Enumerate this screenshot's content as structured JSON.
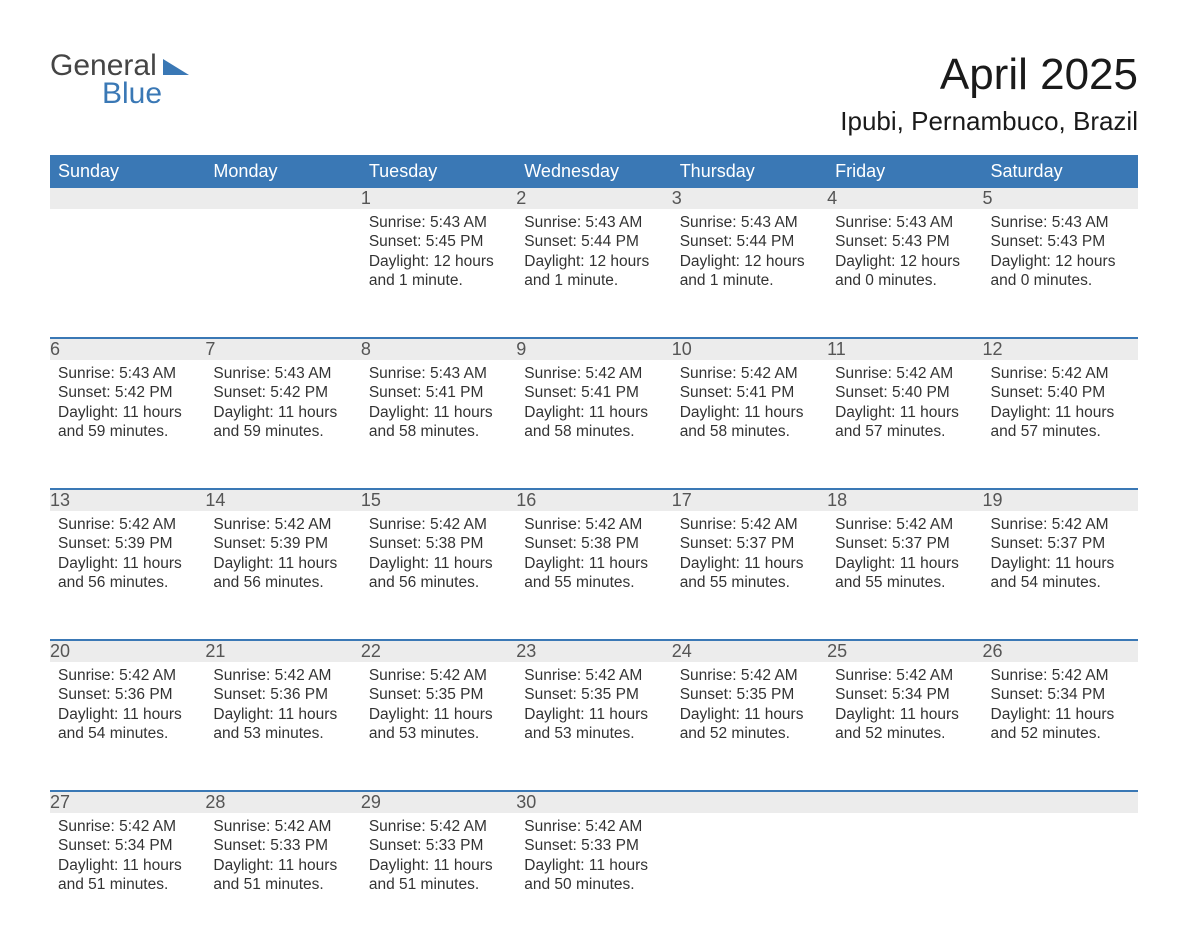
{
  "logo": {
    "word1": "General",
    "word2": "Blue"
  },
  "title": "April 2025",
  "location": "Ipubi, Pernambuco, Brazil",
  "colors": {
    "header_bg": "#3a78b5",
    "header_text": "#ffffff",
    "daynum_bg": "#ececec",
    "daynum_text": "#555555",
    "body_text": "#333333",
    "logo_blue": "#3a78b5",
    "logo_gray": "#454545",
    "background": "#ffffff"
  },
  "fonts": {
    "title_size_pt": 33,
    "location_size_pt": 20,
    "header_size_pt": 14,
    "daynum_size_pt": 14,
    "info_size_pt": 12,
    "logo_size_pt": 23
  },
  "day_headers": [
    "Sunday",
    "Monday",
    "Tuesday",
    "Wednesday",
    "Thursday",
    "Friday",
    "Saturday"
  ],
  "labels": {
    "sunrise": "Sunrise:",
    "sunset": "Sunset:",
    "daylight": "Daylight:"
  },
  "weeks": [
    [
      null,
      null,
      {
        "n": "1",
        "sunrise": "5:43 AM",
        "sunset": "5:45 PM",
        "daylight": "12 hours and 1 minute."
      },
      {
        "n": "2",
        "sunrise": "5:43 AM",
        "sunset": "5:44 PM",
        "daylight": "12 hours and 1 minute."
      },
      {
        "n": "3",
        "sunrise": "5:43 AM",
        "sunset": "5:44 PM",
        "daylight": "12 hours and 1 minute."
      },
      {
        "n": "4",
        "sunrise": "5:43 AM",
        "sunset": "5:43 PM",
        "daylight": "12 hours and 0 minutes."
      },
      {
        "n": "5",
        "sunrise": "5:43 AM",
        "sunset": "5:43 PM",
        "daylight": "12 hours and 0 minutes."
      }
    ],
    [
      {
        "n": "6",
        "sunrise": "5:43 AM",
        "sunset": "5:42 PM",
        "daylight": "11 hours and 59 minutes."
      },
      {
        "n": "7",
        "sunrise": "5:43 AM",
        "sunset": "5:42 PM",
        "daylight": "11 hours and 59 minutes."
      },
      {
        "n": "8",
        "sunrise": "5:43 AM",
        "sunset": "5:41 PM",
        "daylight": "11 hours and 58 minutes."
      },
      {
        "n": "9",
        "sunrise": "5:42 AM",
        "sunset": "5:41 PM",
        "daylight": "11 hours and 58 minutes."
      },
      {
        "n": "10",
        "sunrise": "5:42 AM",
        "sunset": "5:41 PM",
        "daylight": "11 hours and 58 minutes."
      },
      {
        "n": "11",
        "sunrise": "5:42 AM",
        "sunset": "5:40 PM",
        "daylight": "11 hours and 57 minutes."
      },
      {
        "n": "12",
        "sunrise": "5:42 AM",
        "sunset": "5:40 PM",
        "daylight": "11 hours and 57 minutes."
      }
    ],
    [
      {
        "n": "13",
        "sunrise": "5:42 AM",
        "sunset": "5:39 PM",
        "daylight": "11 hours and 56 minutes."
      },
      {
        "n": "14",
        "sunrise": "5:42 AM",
        "sunset": "5:39 PM",
        "daylight": "11 hours and 56 minutes."
      },
      {
        "n": "15",
        "sunrise": "5:42 AM",
        "sunset": "5:38 PM",
        "daylight": "11 hours and 56 minutes."
      },
      {
        "n": "16",
        "sunrise": "5:42 AM",
        "sunset": "5:38 PM",
        "daylight": "11 hours and 55 minutes."
      },
      {
        "n": "17",
        "sunrise": "5:42 AM",
        "sunset": "5:37 PM",
        "daylight": "11 hours and 55 minutes."
      },
      {
        "n": "18",
        "sunrise": "5:42 AM",
        "sunset": "5:37 PM",
        "daylight": "11 hours and 55 minutes."
      },
      {
        "n": "19",
        "sunrise": "5:42 AM",
        "sunset": "5:37 PM",
        "daylight": "11 hours and 54 minutes."
      }
    ],
    [
      {
        "n": "20",
        "sunrise": "5:42 AM",
        "sunset": "5:36 PM",
        "daylight": "11 hours and 54 minutes."
      },
      {
        "n": "21",
        "sunrise": "5:42 AM",
        "sunset": "5:36 PM",
        "daylight": "11 hours and 53 minutes."
      },
      {
        "n": "22",
        "sunrise": "5:42 AM",
        "sunset": "5:35 PM",
        "daylight": "11 hours and 53 minutes."
      },
      {
        "n": "23",
        "sunrise": "5:42 AM",
        "sunset": "5:35 PM",
        "daylight": "11 hours and 53 minutes."
      },
      {
        "n": "24",
        "sunrise": "5:42 AM",
        "sunset": "5:35 PM",
        "daylight": "11 hours and 52 minutes."
      },
      {
        "n": "25",
        "sunrise": "5:42 AM",
        "sunset": "5:34 PM",
        "daylight": "11 hours and 52 minutes."
      },
      {
        "n": "26",
        "sunrise": "5:42 AM",
        "sunset": "5:34 PM",
        "daylight": "11 hours and 52 minutes."
      }
    ],
    [
      {
        "n": "27",
        "sunrise": "5:42 AM",
        "sunset": "5:34 PM",
        "daylight": "11 hours and 51 minutes."
      },
      {
        "n": "28",
        "sunrise": "5:42 AM",
        "sunset": "5:33 PM",
        "daylight": "11 hours and 51 minutes."
      },
      {
        "n": "29",
        "sunrise": "5:42 AM",
        "sunset": "5:33 PM",
        "daylight": "11 hours and 51 minutes."
      },
      {
        "n": "30",
        "sunrise": "5:42 AM",
        "sunset": "5:33 PM",
        "daylight": "11 hours and 50 minutes."
      },
      null,
      null,
      null
    ]
  ]
}
